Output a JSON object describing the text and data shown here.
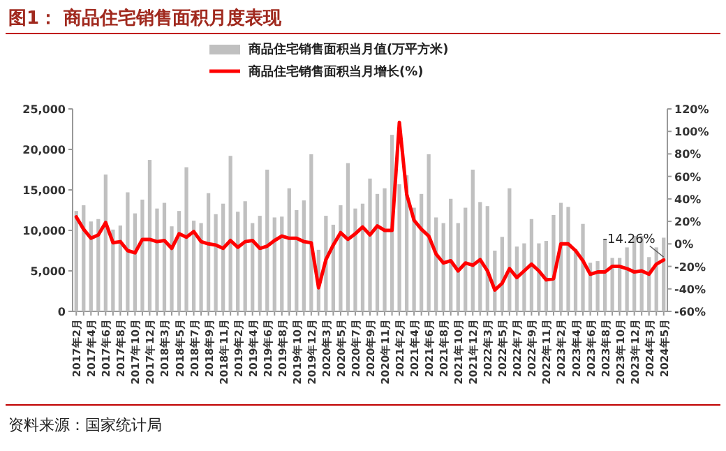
{
  "chart_data": {
    "type": "bar",
    "title": "图1：  商品住宅销售面积月度表现",
    "categories": [
      "2017年2月",
      null,
      "2017年4月",
      null,
      "2017年6月",
      null,
      "2017年8月",
      null,
      "2017年10月",
      null,
      "2017年12月",
      null,
      "2018年3月",
      null,
      "2018年5月",
      null,
      "2018年7月",
      null,
      "2018年9月",
      null,
      "2018年11月",
      null,
      "2019年2月",
      null,
      "2019年4月",
      null,
      "2019年6月",
      null,
      "2019年8月",
      null,
      "2019年10月",
      null,
      "2019年12月",
      null,
      "2020年3月",
      null,
      "2020年5月",
      null,
      "2020年7月",
      null,
      "2020年9月",
      null,
      "2020年11月",
      null,
      "2021年2月",
      null,
      "2021年4月",
      null,
      "2021年6月",
      null,
      "2021年8月",
      null,
      "2021年10月",
      null,
      "2021年12月",
      null,
      "2022年3月",
      null,
      "2022年5月",
      null,
      "2022年7月",
      null,
      "2022年9月",
      null,
      "2022年11月",
      null,
      "2023年2月",
      null,
      "2023年4月",
      null,
      "2023年6月",
      null,
      "2023年8月",
      null,
      "2023年10月",
      null,
      "2023年12月",
      null,
      "2024年3月",
      null,
      "2024年5月"
    ],
    "series": [
      {
        "name": "商品住宅销售面积当月值(万平方米)",
        "color": "#c0c0c0",
        "values": [
          12400,
          13100,
          11100,
          11400,
          16900,
          10100,
          10600,
          14700,
          12100,
          13800,
          18700,
          12700,
          13400,
          10500,
          12400,
          17800,
          11200,
          10900,
          14600,
          12000,
          13300,
          19200,
          12300,
          13600,
          10900,
          11800,
          17500,
          11600,
          11700,
          15200,
          12500,
          13700,
          19400,
          7600,
          11800,
          10700,
          13100,
          18300,
          12700,
          13300,
          16400,
          14500,
          15200,
          21800,
          15700,
          16800,
          12800,
          14500,
          19400,
          11600,
          10900,
          13900,
          10900,
          12800,
          17500,
          13500,
          13000,
          7500,
          9200,
          15200,
          8000,
          8400,
          11400,
          8400,
          8700,
          11900,
          13400,
          12900,
          7700,
          10800,
          6000,
          6200,
          8900,
          6600,
          6600,
          7900,
          9300,
          9300,
          6700,
          7900,
          9100
        ]
      },
      {
        "name": "商品住宅销售面积当月增长(%)",
        "type": "line",
        "axis": "y2",
        "color": "#ff0000",
        "values": [
          24,
          13,
          5,
          8,
          19,
          1,
          2,
          -6,
          -8,
          4,
          4,
          2,
          3,
          -4,
          9,
          6,
          11,
          2,
          0,
          -1,
          -4,
          3,
          -3,
          2,
          3,
          -4,
          -2,
          3,
          7,
          5,
          5,
          2,
          1,
          -39,
          -14,
          -1,
          10,
          4,
          9,
          15,
          8,
          16,
          12,
          12,
          108,
          44,
          21,
          13,
          7,
          -9,
          -17,
          -15,
          -24,
          -17,
          -19,
          -14,
          -24,
          -41,
          -35,
          -22,
          -30,
          -24,
          -18,
          -24,
          -32,
          -31,
          0,
          0,
          -6,
          -15,
          -27,
          -25,
          -25,
          -20,
          -20,
          -22,
          -25,
          -24,
          -27,
          -18,
          -14.26
        ]
      }
    ],
    "ylim": [
      0,
      25000
    ],
    "yticks": [
      0,
      {
        "value": 5000,
        "label": "5,000"
      },
      {
        "value": 10000,
        "label": "10,000"
      },
      {
        "value": 15000,
        "label": "15,000"
      },
      {
        "value": 20000,
        "label": "20,000"
      },
      {
        "value": 25000,
        "label": "25,000"
      }
    ],
    "y2lim": [
      -60,
      120
    ],
    "y2ticks": [
      {
        "value": -60,
        "label": "-60%"
      },
      {
        "value": -40,
        "label": "-40%"
      },
      {
        "value": -20,
        "label": "-20%"
      },
      {
        "value": 0,
        "label": "0%"
      },
      {
        "value": 20,
        "label": "20%"
      },
      {
        "value": 40,
        "label": "40%"
      },
      {
        "value": 60,
        "label": "60%"
      },
      {
        "value": 80,
        "label": "80%"
      },
      {
        "value": 100,
        "label": "100%"
      },
      {
        "value": 120,
        "label": "120%"
      }
    ],
    "legend": "top",
    "annotations": [
      "-14.26%",
      "资料来源：国家统计局"
    ]
  }
}
